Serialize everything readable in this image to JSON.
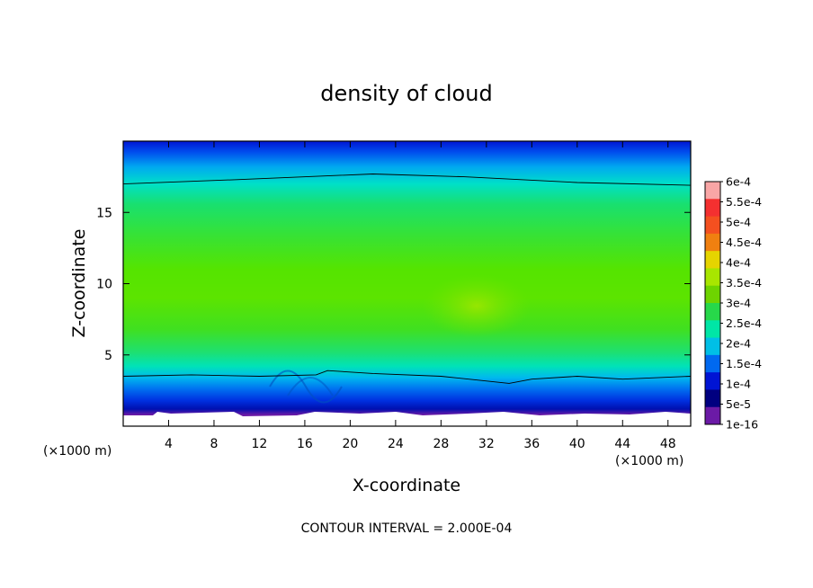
{
  "chart_data": {
    "type": "heatmap",
    "title": "density of cloud",
    "xlabel": "X-coordinate",
    "ylabel": "Z-coordinate",
    "x_unit": "(×1000 m)",
    "y_unit": "(×1000 m)",
    "xlim": [
      0,
      50
    ],
    "ylim": [
      0,
      20
    ],
    "x_ticks": [
      4,
      8,
      12,
      16,
      20,
      24,
      28,
      32,
      36,
      40,
      44,
      48
    ],
    "y_ticks": [
      5,
      10,
      15
    ],
    "colorbar": {
      "labels": [
        "6e-4",
        "5.5e-4",
        "5e-4",
        "4.5e-4",
        "4e-4",
        "3.5e-4",
        "3e-4",
        "2.5e-4",
        "2e-4",
        "1.5e-4",
        "1e-4",
        "5e-5",
        "1e-16"
      ],
      "colors": [
        "#f9a6a6",
        "#f43030",
        "#f45020",
        "#f08010",
        "#e6d400",
        "#a8e600",
        "#6ed400",
        "#27d84a",
        "#00e6a6",
        "#00bfe6",
        "#0069f0",
        "#0014d4",
        "#000080",
        "#6b1aa6"
      ]
    },
    "contour_lines": [
      {
        "level": 0.0002,
        "x": [
          0,
          10,
          22,
          30,
          40,
          50
        ],
        "y": [
          17.0,
          17.3,
          17.7,
          17.5,
          17.1,
          16.9
        ]
      },
      {
        "level": 0.0002,
        "x": [
          0,
          6,
          12,
          17,
          18,
          22,
          28,
          34,
          36,
          40,
          44,
          50
        ],
        "y": [
          3.5,
          3.6,
          3.5,
          3.6,
          3.9,
          3.7,
          3.5,
          3.0,
          3.3,
          3.5,
          3.3,
          3.5
        ]
      }
    ],
    "note": "CONTOUR INTERVAL = 2.000E-04"
  }
}
